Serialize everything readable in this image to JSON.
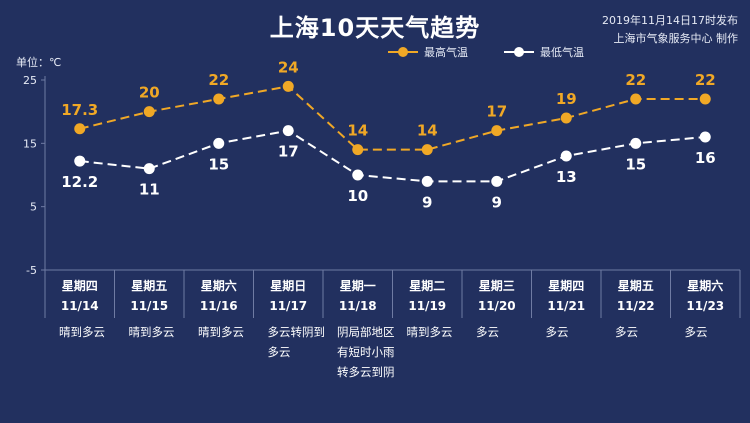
{
  "header": {
    "title": "上海10天天气趋势",
    "publish_time": "2019年11月14日17时发布",
    "publisher": "上海市气象服务中心 制作"
  },
  "colors": {
    "background": "#22305f",
    "high": "#f0a826",
    "low": "#ffffff",
    "grid": "#6f7ba3"
  },
  "chart_data": {
    "type": "line",
    "unit_label": "单位：℃",
    "ylim": [
      -5,
      25
    ],
    "yticks": [
      25,
      15,
      5,
      -5
    ],
    "categories": [
      "11/14",
      "11/15",
      "11/16",
      "11/17",
      "11/18",
      "11/19",
      "11/20",
      "11/21",
      "11/22",
      "11/23"
    ],
    "weekdays": [
      "星期四",
      "星期五",
      "星期六",
      "星期日",
      "星期一",
      "星期二",
      "星期三",
      "星期四",
      "星期五",
      "星期六"
    ],
    "weather": [
      [
        "晴到多云"
      ],
      [
        "晴到多云"
      ],
      [
        "晴到多云"
      ],
      [
        "多云转阴到",
        "多云"
      ],
      [
        "阴局部地区",
        "有短时小雨",
        "转多云到阴"
      ],
      [
        "晴到多云"
      ],
      [
        "多云"
      ],
      [
        "多云"
      ],
      [
        "多云"
      ],
      [
        "多云"
      ]
    ],
    "series": [
      {
        "name": "最高气温",
        "values": [
          17.3,
          20,
          22,
          24,
          14,
          14,
          17,
          19,
          22,
          22
        ]
      },
      {
        "name": "最低气温",
        "values": [
          12.2,
          11,
          15,
          17,
          10,
          9,
          9,
          13,
          15,
          16
        ]
      }
    ],
    "legend": "top-center"
  }
}
